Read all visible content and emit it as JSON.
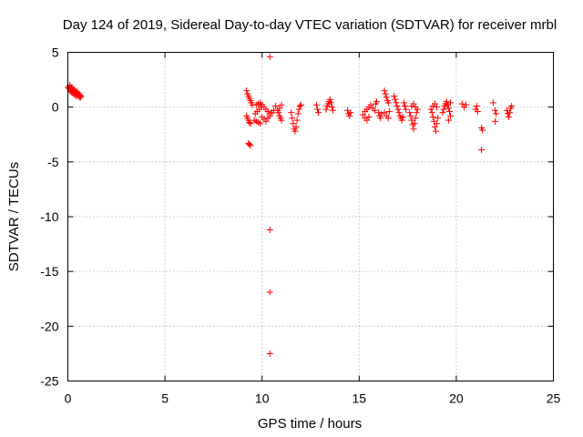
{
  "chart_data": {
    "type": "scatter",
    "title": "Day 124 of 2019, Sidereal Day-to-day VTEC variation (SDTVAR) for receiver mrbl",
    "xlabel": "GPS time / hours",
    "ylabel": "SDTVAR / TECUs",
    "xlim": [
      0,
      25
    ],
    "ylim": [
      -25,
      5
    ],
    "xticks": [
      0,
      5,
      10,
      15,
      20,
      25
    ],
    "yticks": [
      5,
      0,
      -5,
      -10,
      -15,
      -20,
      -25
    ],
    "grid": true,
    "marker": "+",
    "color": "#ff0000",
    "series": [
      {
        "name": "SDTVAR",
        "points": [
          [
            0.0,
            1.8
          ],
          [
            0.05,
            1.7
          ],
          [
            0.1,
            1.9
          ],
          [
            0.12,
            1.5
          ],
          [
            0.15,
            1.6
          ],
          [
            0.18,
            1.4
          ],
          [
            0.2,
            1.7
          ],
          [
            0.22,
            1.3
          ],
          [
            0.25,
            1.5
          ],
          [
            0.28,
            1.6
          ],
          [
            0.3,
            1.2
          ],
          [
            0.33,
            1.4
          ],
          [
            0.35,
            1.5
          ],
          [
            0.38,
            1.1
          ],
          [
            0.4,
            1.3
          ],
          [
            0.42,
            1.4
          ],
          [
            0.45,
            1.0
          ],
          [
            0.48,
            1.2
          ],
          [
            0.5,
            1.3
          ],
          [
            0.53,
            1.1
          ],
          [
            0.55,
            1.2
          ],
          [
            0.58,
            0.9
          ],
          [
            0.6,
            1.0
          ],
          [
            0.62,
            1.1
          ],
          [
            0.65,
            0.9
          ],
          [
            0.68,
            1.0
          ],
          [
            0.1,
            2.0
          ],
          [
            0.2,
            1.8
          ],
          [
            0.3,
            1.6
          ],
          [
            0.45,
            1.45
          ],
          [
            9.2,
            1.5
          ],
          [
            9.25,
            1.2
          ],
          [
            9.3,
            1.0
          ],
          [
            9.35,
            0.8
          ],
          [
            9.4,
            0.6
          ],
          [
            9.45,
            0.4
          ],
          [
            9.5,
            0.2
          ],
          [
            9.2,
            -0.8
          ],
          [
            9.25,
            -1.0
          ],
          [
            9.3,
            -1.2
          ],
          [
            9.35,
            -1.4
          ],
          [
            9.4,
            -1.5
          ],
          [
            9.3,
            -3.3
          ],
          [
            9.35,
            -3.4
          ],
          [
            9.4,
            -3.5
          ],
          [
            9.6,
            -1.2
          ],
          [
            9.7,
            -1.3
          ],
          [
            9.8,
            -1.4
          ],
          [
            9.9,
            -1.5
          ],
          [
            9.65,
            -0.6
          ],
          [
            9.75,
            -0.4
          ],
          [
            9.85,
            -0.2
          ],
          [
            9.95,
            0.0
          ],
          [
            9.7,
            0.2
          ],
          [
            9.8,
            0.3
          ],
          [
            9.9,
            0.4
          ],
          [
            10.0,
            0.2
          ],
          [
            10.1,
            0.0
          ],
          [
            10.2,
            -0.2
          ],
          [
            10.3,
            -0.4
          ],
          [
            10.4,
            -0.6
          ],
          [
            10.0,
            -0.9
          ],
          [
            10.1,
            -1.1
          ],
          [
            10.2,
            -1.3
          ],
          [
            10.3,
            -1.0
          ],
          [
            10.4,
            -0.8
          ],
          [
            10.5,
            -0.5
          ],
          [
            10.6,
            -0.3
          ],
          [
            10.7,
            0.1
          ],
          [
            10.4,
            4.6
          ],
          [
            10.4,
            -11.2
          ],
          [
            10.4,
            -16.9
          ],
          [
            10.4,
            -22.5
          ],
          [
            10.8,
            -0.3
          ],
          [
            10.85,
            -0.5
          ],
          [
            10.9,
            -0.8
          ],
          [
            10.95,
            -1.0
          ],
          [
            11.0,
            -1.2
          ],
          [
            10.9,
            -0.1
          ],
          [
            11.0,
            0.2
          ],
          [
            11.5,
            -0.5
          ],
          [
            11.55,
            -1.0
          ],
          [
            11.6,
            -1.5
          ],
          [
            11.65,
            -2.0
          ],
          [
            11.7,
            -2.2
          ],
          [
            11.75,
            -1.8
          ],
          [
            11.8,
            -1.2
          ],
          [
            11.85,
            -0.6
          ],
          [
            11.9,
            -0.2
          ],
          [
            11.95,
            0.1
          ],
          [
            12.0,
            0.2
          ],
          [
            12.8,
            0.2
          ],
          [
            12.85,
            -0.2
          ],
          [
            12.9,
            -0.5
          ],
          [
            13.3,
            -0.2
          ],
          [
            13.35,
            0.1
          ],
          [
            13.4,
            0.3
          ],
          [
            13.45,
            0.5
          ],
          [
            13.5,
            0.7
          ],
          [
            13.55,
            0.4
          ],
          [
            13.6,
            0.0
          ],
          [
            13.65,
            -0.3
          ],
          [
            14.4,
            -0.3
          ],
          [
            14.45,
            -0.6
          ],
          [
            14.5,
            -0.8
          ],
          [
            14.55,
            -0.5
          ],
          [
            15.2,
            -0.7
          ],
          [
            15.3,
            -0.4
          ],
          [
            15.4,
            -0.2
          ],
          [
            15.5,
            0.0
          ],
          [
            15.6,
            0.2
          ],
          [
            15.7,
            -0.1
          ],
          [
            15.8,
            -0.3
          ],
          [
            15.85,
            0.3
          ],
          [
            15.9,
            0.5
          ],
          [
            15.3,
            -1.0
          ],
          [
            15.4,
            -1.2
          ],
          [
            15.5,
            -0.9
          ],
          [
            16.0,
            -0.5
          ],
          [
            16.05,
            -0.8
          ],
          [
            16.1,
            -1.0
          ],
          [
            16.15,
            -0.6
          ],
          [
            16.3,
            1.5
          ],
          [
            16.35,
            1.2
          ],
          [
            16.4,
            0.9
          ],
          [
            16.45,
            0.6
          ],
          [
            16.5,
            0.4
          ],
          [
            16.3,
            -0.5
          ],
          [
            16.4,
            -0.8
          ],
          [
            16.5,
            -1.0
          ],
          [
            16.55,
            -0.4
          ],
          [
            16.8,
            1.0
          ],
          [
            16.85,
            0.7
          ],
          [
            16.9,
            0.4
          ],
          [
            16.95,
            0.1
          ],
          [
            17.0,
            -0.2
          ],
          [
            17.05,
            -0.5
          ],
          [
            17.1,
            -0.8
          ],
          [
            17.15,
            -1.0
          ],
          [
            17.2,
            -1.2
          ],
          [
            17.25,
            -0.9
          ],
          [
            17.3,
            0.4
          ],
          [
            17.35,
            0.1
          ],
          [
            17.4,
            -0.2
          ],
          [
            17.6,
            -0.5
          ],
          [
            17.65,
            -0.8
          ],
          [
            17.7,
            -1.2
          ],
          [
            17.75,
            -1.6
          ],
          [
            17.8,
            -2.0
          ],
          [
            17.85,
            -1.5
          ],
          [
            17.9,
            -1.0
          ],
          [
            17.95,
            -0.5
          ],
          [
            18.0,
            -0.2
          ],
          [
            17.7,
            0.1
          ],
          [
            17.8,
            0.3
          ],
          [
            17.9,
            0.0
          ],
          [
            18.7,
            -0.2
          ],
          [
            18.75,
            -0.5
          ],
          [
            18.8,
            -0.9
          ],
          [
            18.85,
            -1.3
          ],
          [
            18.9,
            -1.8
          ],
          [
            18.95,
            -2.2
          ],
          [
            19.0,
            -1.5
          ],
          [
            19.05,
            -1.0
          ],
          [
            18.8,
            0.1
          ],
          [
            18.9,
            0.3
          ],
          [
            19.0,
            0.0
          ],
          [
            19.3,
            -0.5
          ],
          [
            19.35,
            -0.2
          ],
          [
            19.4,
            0.1
          ],
          [
            19.45,
            0.3
          ],
          [
            19.5,
            0.5
          ],
          [
            19.55,
            0.2
          ],
          [
            19.6,
            -0.1
          ],
          [
            19.65,
            -0.4
          ],
          [
            19.7,
            -0.8
          ],
          [
            19.6,
            -1.2
          ],
          [
            19.7,
            0.4
          ],
          [
            20.3,
            0.3
          ],
          [
            20.4,
            0.0
          ],
          [
            20.5,
            0.2
          ],
          [
            21.0,
            -0.2
          ],
          [
            21.05,
            0.1
          ],
          [
            21.1,
            -0.4
          ],
          [
            21.3,
            -1.9
          ],
          [
            21.35,
            -2.1
          ],
          [
            21.3,
            -3.9
          ],
          [
            21.9,
            0.4
          ],
          [
            22.0,
            -0.3
          ],
          [
            22.05,
            -0.6
          ],
          [
            22.0,
            -1.3
          ],
          [
            22.6,
            -0.3
          ],
          [
            22.65,
            -0.6
          ],
          [
            22.7,
            -0.9
          ],
          [
            22.75,
            -0.5
          ],
          [
            22.8,
            -0.1
          ],
          [
            22.85,
            0.1
          ]
        ]
      }
    ]
  }
}
